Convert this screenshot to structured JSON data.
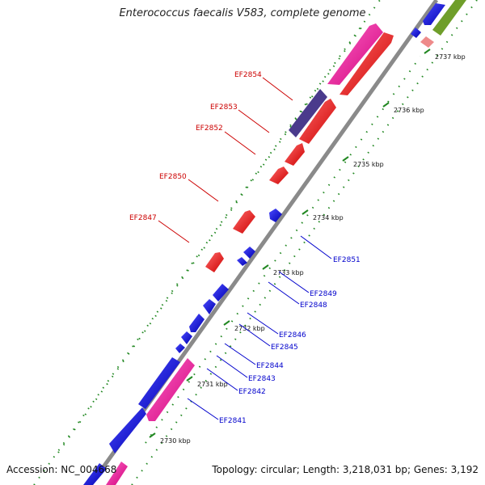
{
  "title": "Enterococcus faecalis V583, complete genome",
  "accession": "Accession: NC_004668",
  "summary": "Topology: circular; Length: 3,218,031 bp; Genes: 3,192",
  "colors": {
    "forward_gene": "#ff0000",
    "reverse_gene": "#0000ee",
    "highlight_gene": "#ff1aa8",
    "purple_gene": "#4a3a8c",
    "olive_gene": "#6f9e2a",
    "light_pink_gene": "#ee8a8a",
    "backbone": "#8a8a8a",
    "dots": "#228822",
    "label_red": "#cc0000",
    "label_blue": "#0000cc"
  },
  "ticks": [
    {
      "label": "2730 kbp"
    },
    {
      "label": "2731 kbp"
    },
    {
      "label": "2732 kbp"
    },
    {
      "label": "2733 kbp"
    },
    {
      "label": "2734 kbp"
    },
    {
      "label": "2735 kbp"
    },
    {
      "label": "2736 kbp"
    },
    {
      "label": "2737 kbp"
    }
  ],
  "red_labels": [
    {
      "text": "EF2854"
    },
    {
      "text": "EF2853"
    },
    {
      "text": "EF2852"
    },
    {
      "text": "EF2850"
    },
    {
      "text": "EF2847"
    }
  ],
  "blue_labels": [
    {
      "text": "EF2851"
    },
    {
      "text": "EF2849"
    },
    {
      "text": "EF2848"
    },
    {
      "text": "EF2846"
    },
    {
      "text": "EF2845"
    },
    {
      "text": "EF2844"
    },
    {
      "text": "EF2843"
    },
    {
      "text": "EF2842"
    },
    {
      "text": "EF2841"
    }
  ]
}
